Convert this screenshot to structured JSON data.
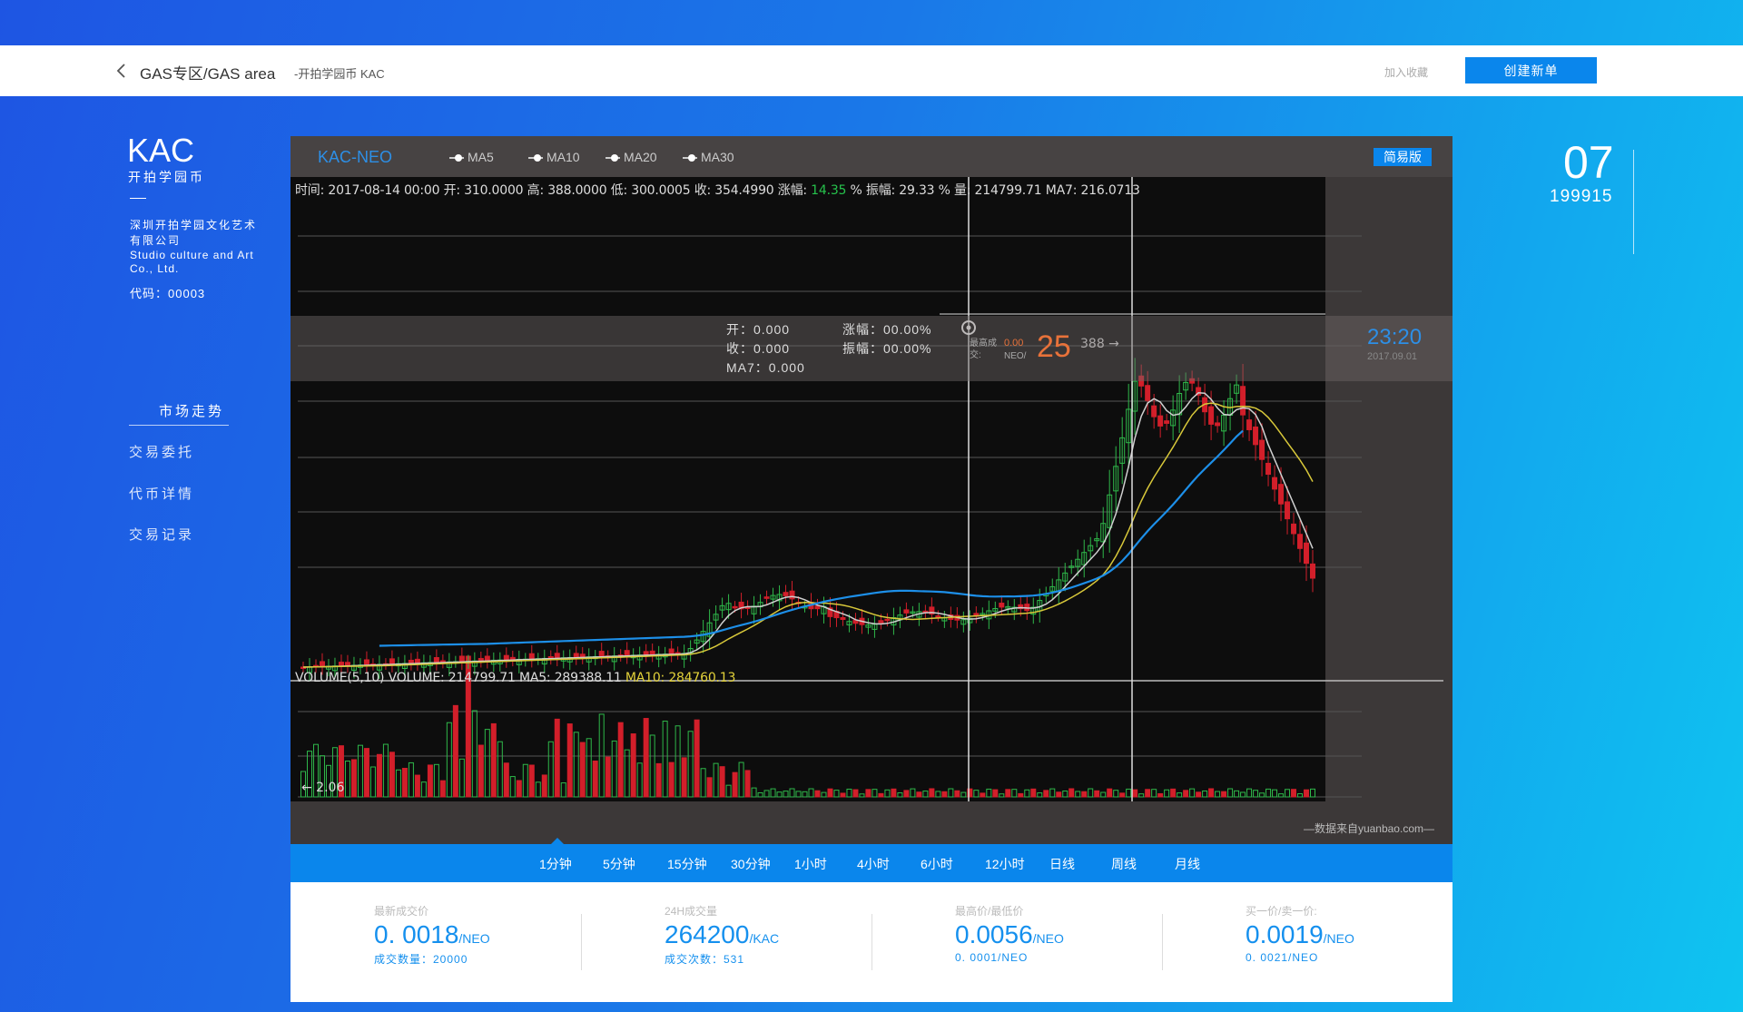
{
  "header": {
    "breadcrumb_main": "GAS专区/GAS area",
    "breadcrumb_sub": "-开拍学园币 KAC",
    "favorite_label": "加入收藏",
    "create_label": "创建新单"
  },
  "coin": {
    "symbol": "KAC",
    "name_cn": "开拍学园币",
    "dash": "—",
    "company_cn": "深圳开拍学园文化艺术有限公司",
    "company_en": "Studio culture and Art Co., Ltd.",
    "code": "代码：00003"
  },
  "sidebar": {
    "items": [
      {
        "label": "市场走势",
        "active": true
      },
      {
        "label": "交易委托"
      },
      {
        "label": "代币详情"
      },
      {
        "label": "交易记录"
      }
    ]
  },
  "date": {
    "day": "07",
    "code": "199915"
  },
  "chart": {
    "pair": "KAC-NEO",
    "ma_options": [
      "MA5",
      "MA10",
      "MA20",
      "MA30"
    ],
    "simple_label": "简易版",
    "ohlc": {
      "time": "时间: 2017-08-14  00:00",
      "open": "开: 310.0000",
      "high": "高: 388.0000",
      "low": "低: 300.0005",
      "close": "收: 354.4990",
      "change_label": "涨幅:",
      "change_value": "14.35",
      "change_unit": "%",
      "amplitude": "振幅: 29.33 %",
      "volume": "量: 214799.71",
      "ma7": "MA7: 216.0713"
    },
    "high_marker": "388 →",
    "low_marker": "← 2.06",
    "volume_info": {
      "title": "VOLUME(5,10)",
      "volume": "VOLUME: 214799.71",
      "ma5": "MA5: 289388.11",
      "ma10": "MA10: 284760.13"
    },
    "tooltip": {
      "open": "开：0.000",
      "close": "收：0.000",
      "ma7": "MA7：0.000",
      "change": "涨幅：00.00%",
      "amplitude": "振幅：00.00%",
      "hl_label": "最高成交:",
      "hl_value": "0.00",
      "hl_unit": "NEO/",
      "big_value": "25",
      "time": "23:20",
      "date": "2017.09.01"
    },
    "source": "—数据来自yuanbao.com—",
    "colors": {
      "up": "#2fb84a",
      "down": "#d21f2a",
      "ma_blue": "#1d8fe8",
      "ma_yellow": "#d8c83a",
      "ma_white": "#d0d0d0"
    }
  },
  "timeframes": [
    "1分钟",
    "5分钟",
    "15分钟",
    "30分钟",
    "1小时",
    "4小时",
    "6小时",
    "12小时",
    "日线",
    "周线",
    "月线"
  ],
  "stats": [
    {
      "label": "最新成交价",
      "value": "0. 0018",
      "unit": "/NEO",
      "sub": "成交数量：20000"
    },
    {
      "label": "24H成交量",
      "value": "264200",
      "unit": "/KAC",
      "sub": "成交次数：531"
    },
    {
      "label": "最高价/最低价",
      "value": "0.0056",
      "unit": "/NEO",
      "sub": "0. 0001/NEO"
    },
    {
      "label": "买一价/卖一价:",
      "value": "0.0019",
      "unit": "/NEO",
      "sub": "0. 0021/NEO"
    }
  ]
}
